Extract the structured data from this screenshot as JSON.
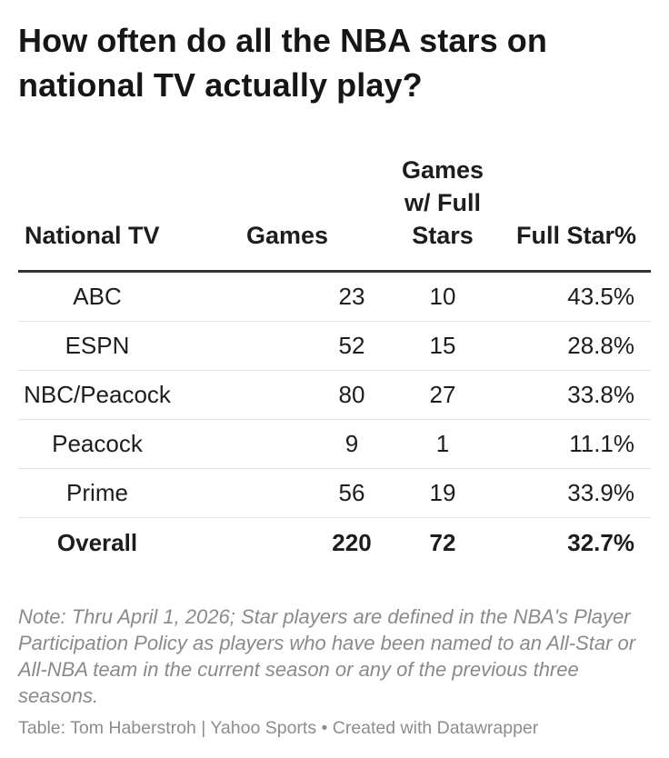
{
  "title": "How often do all the NBA stars on national TV actually play?",
  "chart_data": {
    "type": "table",
    "columns": [
      "National TV",
      "Games",
      "Games w/ Full Stars",
      "Full Star%"
    ],
    "rows": [
      {
        "network": "ABC",
        "games": "23",
        "full_star_games": "10",
        "full_star_pct": "43.5%"
      },
      {
        "network": "ESPN",
        "games": "52",
        "full_star_games": "15",
        "full_star_pct": "28.8%"
      },
      {
        "network": "NBC/Peacock",
        "games": "80",
        "full_star_games": "27",
        "full_star_pct": "33.8%"
      },
      {
        "network": "Peacock",
        "games": "9",
        "full_star_games": "1",
        "full_star_pct": "11.1%"
      },
      {
        "network": "Prime",
        "games": "56",
        "full_star_games": "19",
        "full_star_pct": "33.9%"
      }
    ],
    "total": {
      "network": "Overall",
      "games": "220",
      "full_star_games": "72",
      "full_star_pct": "32.7%"
    }
  },
  "note": "Note: Thru April 1, 2026; Star players are defined in the NBA's Player Participation Policy as players who have been named to an All-Star or All-NBA team in the current season or any of the previous three seasons.",
  "credit": "Table: Tom Haberstroh | Yahoo Sports • Created with Datawrapper"
}
